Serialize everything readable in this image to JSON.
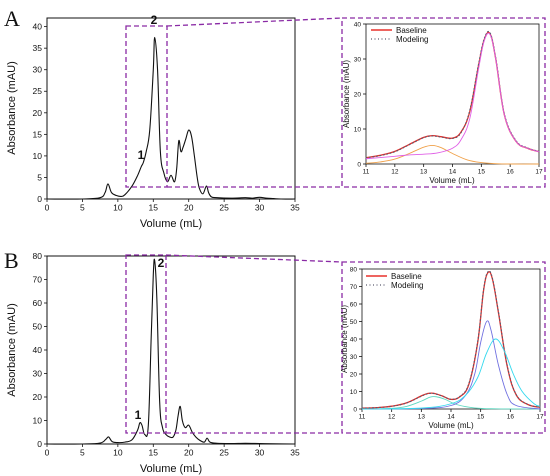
{
  "colors": {
    "trace": "#111111",
    "zoom_box": "#8a2aa5",
    "baseline": "#e8302c",
    "modeling": "#5a5a6e",
    "fit_a_small": "#f0a14a",
    "fit_a_large": "#e060e6",
    "fit_b_small": "#5fd8c0",
    "fit_b_mid": "#7070e0",
    "fit_b_large": "#35d9ee"
  },
  "chart_data": [
    {
      "type": "line",
      "panel": "A",
      "xlabel": "Volume (mL)",
      "ylabel": "Absorbance (mAU)",
      "xlim": [
        0,
        35
      ],
      "ylim": [
        0,
        42
      ],
      "xticks": [
        0,
        5,
        10,
        15,
        20,
        25,
        30,
        35
      ],
      "yticks": [
        0,
        5,
        10,
        15,
        20,
        25,
        30,
        35,
        40
      ],
      "highlight_range_x": [
        11,
        17
      ],
      "peaks": [
        {
          "label": "1",
          "x": 13.3,
          "y": 7.5
        },
        {
          "label": "2",
          "x": 15.2,
          "y": 37.5
        }
      ],
      "series": [
        {
          "x": [
            0,
            5,
            7.5,
            8.2,
            8.6,
            9.1,
            9.8,
            10.5,
            11,
            12,
            12.8,
            13.3,
            13.6,
            14,
            14.5,
            15,
            15.2,
            15.6,
            16,
            16.5,
            17,
            17.5,
            18,
            18.3,
            18.6,
            18.9,
            19.2,
            19.6,
            20,
            20.4,
            20.8,
            21.2,
            21.5,
            22,
            22.5,
            22.8,
            23.2,
            24,
            26,
            28,
            29,
            30,
            31,
            32,
            33,
            35
          ],
          "y": [
            0,
            0,
            0.3,
            1.5,
            3.5,
            1.5,
            0.8,
            0.6,
            1,
            3,
            5.5,
            7.5,
            8.5,
            11,
            16,
            30,
            37.5,
            30,
            11,
            6,
            4,
            5.5,
            4,
            7,
            13.5,
            11,
            12,
            14,
            16,
            14.5,
            10,
            5,
            2.5,
            1.2,
            3,
            1.5,
            0.5,
            0.3,
            0.2,
            0.3,
            0.2,
            0.4,
            0.2,
            0.1,
            0,
            0
          ]
        }
      ]
    },
    {
      "type": "line",
      "panel": "A-zoom",
      "xlabel": "Volume (mL)",
      "ylabel": "Absorbance (mAU)",
      "xlim": [
        11,
        17
      ],
      "ylim": [
        0,
        40
      ],
      "xticks": [
        11,
        12,
        13,
        14,
        15,
        16,
        17
      ],
      "yticks": [
        0,
        10,
        20,
        30,
        40
      ],
      "legend_position": "top-left",
      "series": [
        {
          "name": "Baseline",
          "x": [
            11,
            11.5,
            12,
            12.5,
            13,
            13.3,
            13.6,
            14,
            14.3,
            14.6,
            14.9,
            15.1,
            15.3,
            15.5,
            15.8,
            16.2,
            16.6,
            17
          ],
          "y": [
            1.8,
            2.5,
            3.6,
            5.6,
            7.6,
            8.1,
            7.8,
            7.4,
            9.2,
            15,
            28,
            35.5,
            37.2,
            30,
            14,
            6.5,
            4.5,
            3.5
          ]
        },
        {
          "name": "Modeling",
          "x": [
            11,
            11.5,
            12,
            12.5,
            13,
            13.3,
            13.6,
            14,
            14.3,
            14.6,
            14.9,
            15.1,
            15.3,
            15.5,
            15.8,
            16.2,
            16.6,
            17
          ],
          "y": [
            1.8,
            2.4,
            3.5,
            5.5,
            7.5,
            8.0,
            7.7,
            7.3,
            9.0,
            15.4,
            28.4,
            35.8,
            37.5,
            30.3,
            14.3,
            6.7,
            4.6,
            3.6
          ]
        },
        {
          "x": [
            11,
            11.5,
            12,
            12.5,
            13,
            13.3,
            13.6,
            14,
            14.5,
            15,
            15.5,
            16,
            17
          ],
          "y": [
            0.2,
            0.6,
            1.4,
            3,
            4.8,
            5.3,
            4.7,
            3,
            1.2,
            0.4,
            0.1,
            0,
            0
          ]
        },
        {
          "x": [
            11,
            12,
            12.5,
            13,
            13.5,
            14,
            14.3,
            14.6,
            14.9,
            15.1,
            15.3,
            15.5,
            15.8,
            16.2,
            16.6,
            17
          ],
          "y": [
            1.5,
            2.2,
            2.6,
            2.8,
            3.2,
            4.5,
            7,
            13,
            27,
            35.2,
            37,
            30,
            14,
            6.5,
            4.5,
            3.5
          ]
        }
      ]
    },
    {
      "type": "line",
      "panel": "B",
      "xlabel": "Volume (mL)",
      "ylabel": "Absorbance (mAU)",
      "xlim": [
        0,
        35
      ],
      "ylim": [
        0,
        80
      ],
      "xticks": [
        0,
        5,
        10,
        15,
        20,
        25,
        30,
        35
      ],
      "yticks": [
        0,
        10,
        20,
        30,
        40,
        50,
        60,
        70,
        80
      ],
      "highlight_range_x": [
        11,
        17
      ],
      "peaks": [
        {
          "label": "1",
          "x": 13.4,
          "y": 9
        },
        {
          "label": "2",
          "x": 15.2,
          "y": 78
        }
      ],
      "series": [
        {
          "x": [
            0,
            5,
            7.5,
            8.3,
            8.7,
            9.2,
            10,
            11,
            12,
            12.8,
            13.1,
            13.4,
            13.8,
            14.3,
            14.7,
            15,
            15.2,
            15.5,
            15.9,
            16.3,
            16.8,
            17.3,
            17.8,
            18.2,
            18.5,
            18.8,
            19.1,
            19.5,
            20,
            20.5,
            21,
            21.6,
            22.2,
            22.6,
            23,
            24,
            26,
            28,
            30,
            32,
            35
          ],
          "y": [
            0,
            0,
            0.4,
            2,
            3,
            1,
            0.6,
            0.8,
            1.8,
            6,
            9,
            8,
            4,
            8,
            45,
            72,
            78,
            62,
            18,
            7,
            4,
            3,
            3,
            6,
            12,
            16,
            10,
            7,
            8,
            5,
            3,
            1.5,
            0.8,
            2.5,
            0.8,
            0.3,
            0.2,
            0.3,
            0.2,
            0.1,
            0
          ]
        }
      ]
    },
    {
      "type": "line",
      "panel": "B-zoom",
      "xlabel": "Volume (mL)",
      "ylabel": "Absorbance (mAU)",
      "xlim": [
        11,
        17
      ],
      "ylim": [
        0,
        80
      ],
      "xticks": [
        11,
        12,
        13,
        14,
        15,
        16,
        17
      ],
      "yticks": [
        0,
        10,
        20,
        30,
        40,
        50,
        60,
        70,
        80
      ],
      "legend_position": "top-left",
      "series": [
        {
          "name": "Baseline",
          "x": [
            11,
            11.5,
            12,
            12.5,
            13,
            13.2,
            13.4,
            13.7,
            14,
            14.3,
            14.6,
            14.9,
            15.1,
            15.25,
            15.4,
            15.6,
            15.9,
            16.2,
            16.6,
            17
          ],
          "y": [
            0.5,
            0.8,
            1.6,
            3.5,
            7.5,
            8.8,
            9,
            7.5,
            5.5,
            7,
            14,
            38,
            68,
            78,
            74,
            55,
            24,
            8,
            2.5,
            1
          ]
        },
        {
          "name": "Modeling",
          "x": [
            11,
            11.5,
            12,
            12.5,
            13,
            13.2,
            13.4,
            13.7,
            14,
            14.3,
            14.6,
            14.9,
            15.1,
            15.25,
            15.4,
            15.6,
            15.9,
            16.2,
            16.6,
            17
          ],
          "y": [
            0.5,
            0.8,
            1.5,
            3.4,
            7.3,
            8.6,
            8.9,
            7.4,
            5.6,
            7.2,
            14.5,
            38.5,
            68.5,
            78.5,
            74.5,
            55.5,
            24.5,
            8.2,
            2.6,
            1
          ]
        },
        {
          "x": [
            11,
            12,
            12.5,
            13,
            13.3,
            13.5,
            13.8,
            14.2,
            14.8,
            15.5,
            17
          ],
          "y": [
            0,
            0.4,
            1.5,
            4.5,
            6.8,
            7,
            5.5,
            2.5,
            0.6,
            0.1,
            0
          ]
        },
        {
          "x": [
            11,
            13,
            14,
            14.5,
            14.8,
            15,
            15.2,
            15.35,
            15.6,
            15.9,
            16.2,
            17
          ],
          "y": [
            0,
            0.3,
            2,
            8,
            20,
            38,
            50,
            45,
            25,
            8,
            2,
            0
          ]
        },
        {
          "x": [
            11,
            13,
            14,
            14.5,
            14.9,
            15.2,
            15.5,
            15.8,
            16.1,
            16.4,
            16.8,
            17
          ],
          "y": [
            0,
            0.5,
            3,
            8,
            18,
            32,
            40,
            33,
            20,
            10,
            3,
            1.5
          ]
        }
      ]
    }
  ]
}
